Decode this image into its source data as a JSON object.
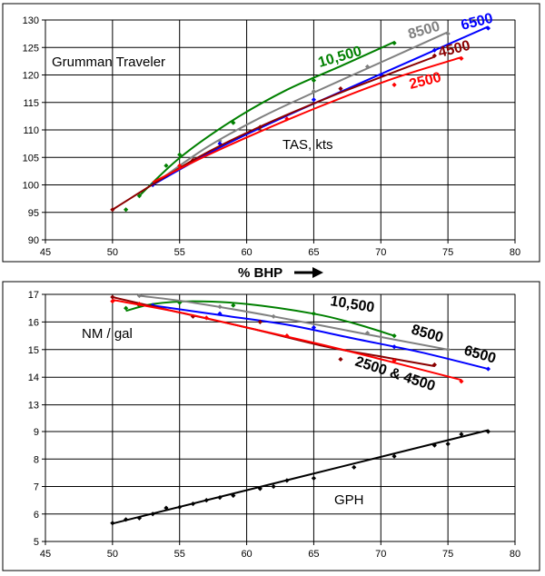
{
  "x_axis_title": "% BHP",
  "chart_data": [
    {
      "type": "line",
      "panel": "top",
      "annotations": [
        "Grumman Traveler",
        "TAS, kts"
      ],
      "xlim": [
        45,
        80
      ],
      "ylim": [
        90,
        130
      ],
      "xticks": [
        45,
        50,
        55,
        60,
        65,
        70,
        75,
        80
      ],
      "yticks": [
        90,
        95,
        100,
        105,
        110,
        115,
        120,
        125,
        130
      ],
      "grid": true,
      "series": [
        {
          "name": "10,500",
          "color": "#008000",
          "label_angle": -16,
          "points": [
            [
              51,
              95.5
            ],
            [
              52,
              98
            ],
            [
              54,
              103.5
            ],
            [
              55,
              105.5
            ],
            [
              59,
              111.3
            ],
            [
              65,
              119
            ],
            [
              71,
              125.8
            ]
          ],
          "fit": [
            [
              52,
              98
            ],
            [
              55,
              104.9
            ],
            [
              59,
              111.8
            ],
            [
              63,
              117.3
            ],
            [
              67,
              121.6
            ],
            [
              71,
              126
            ]
          ]
        },
        {
          "name": "8500",
          "color": "#808080",
          "label_angle": -16,
          "points": [
            [
              53,
              100
            ],
            [
              58,
              108
            ],
            [
              65,
              117
            ],
            [
              69,
              121.5
            ],
            [
              75,
              127.5
            ]
          ],
          "fit": [
            [
              53,
              100
            ],
            [
              57,
              106.8
            ],
            [
              61,
              112.2
            ],
            [
              65,
              116.8
            ],
            [
              70,
              122.3
            ],
            [
              75,
              127.8
            ]
          ]
        },
        {
          "name": "6500",
          "color": "#0000ff",
          "label_angle": -14,
          "points": [
            [
              53,
              100
            ],
            [
              58,
              107.5
            ],
            [
              65,
              115.5
            ],
            [
              70,
              120
            ],
            [
              74,
              124.5
            ],
            [
              78,
              128.5
            ]
          ],
          "fit": [
            [
              53,
              100
            ],
            [
              58,
              106.8
            ],
            [
              63,
              112.6
            ],
            [
              68,
              118
            ],
            [
              73,
              123.4
            ],
            [
              78,
              128.8
            ]
          ]
        },
        {
          "name": "4500",
          "color": "#8b0000",
          "label_angle": -14,
          "points": [
            [
              50,
              95.5
            ],
            [
              56,
              104.5
            ],
            [
              61,
              110.5
            ],
            [
              67,
              117.5
            ],
            [
              74,
              123.5
            ]
          ],
          "fit": [
            [
              50,
              95.5
            ],
            [
              56,
              104.5
            ],
            [
              61,
              110.6
            ],
            [
              66,
              115.8
            ],
            [
              70,
              119.6
            ],
            [
              74,
              123.3
            ]
          ]
        },
        {
          "name": "2500",
          "color": "#ff0000",
          "label_angle": -14,
          "points": [
            [
              55,
              103.5
            ],
            [
              63,
              112
            ],
            [
              71,
              118.2
            ],
            [
              76,
              123
            ]
          ],
          "fit": [
            [
              53,
              100.5
            ],
            [
              57,
              105.3
            ],
            [
              61,
              109.7
            ],
            [
              66,
              114.8
            ],
            [
              71,
              119.4
            ],
            [
              76,
              123.2
            ]
          ]
        }
      ]
    },
    {
      "type": "line",
      "panel": "bottom",
      "annotations": [
        "NM / gal",
        "GPH"
      ],
      "xlim": [
        45,
        80
      ],
      "ylim": [
        5,
        17
      ],
      "xticks": [
        45,
        50,
        55,
        60,
        65,
        70,
        75,
        80
      ],
      "yticks": [
        5,
        6,
        7,
        8,
        9,
        13,
        14,
        15,
        16,
        17
      ],
      "grid": true,
      "series": [
        {
          "name": "10,500",
          "color": "#008000",
          "label_angle": 9,
          "points": [
            [
              51,
              16.5
            ],
            [
              52,
              16.6
            ],
            [
              55,
              16.7
            ],
            [
              59,
              16.6
            ],
            [
              65,
              16.3
            ],
            [
              71,
              15.5
            ]
          ],
          "fit": [
            [
              51,
              16.4
            ],
            [
              53,
              16.65
            ],
            [
              56,
              16.75
            ],
            [
              60,
              16.65
            ],
            [
              65,
              16.3
            ],
            [
              68,
              15.95
            ],
            [
              71,
              15.5
            ]
          ]
        },
        {
          "name": "8500",
          "color": "#808080",
          "label_angle": 16,
          "points": [
            [
              52,
              16.95
            ],
            [
              58,
              16.55
            ],
            [
              62,
              16.2
            ],
            [
              69,
              15.6
            ],
            [
              75,
              15
            ]
          ],
          "fit": [
            [
              52,
              16.95
            ],
            [
              56,
              16.7
            ],
            [
              62,
              16.2
            ],
            [
              69,
              15.55
            ],
            [
              75,
              15
            ]
          ]
        },
        {
          "name": "6500",
          "color": "#0000ff",
          "label_angle": 16,
          "points": [
            [
              53,
              16.6
            ],
            [
              58,
              16.3
            ],
            [
              65,
              15.8
            ],
            [
              71,
              15.1
            ],
            [
              78,
              14.3
            ]
          ],
          "fit": [
            [
              53,
              16.6
            ],
            [
              58,
              16.25
            ],
            [
              63,
              15.9
            ],
            [
              68,
              15.4
            ],
            [
              73,
              14.9
            ],
            [
              78,
              14.3
            ]
          ]
        },
        {
          "name": "2500 & 4500 (4500)",
          "color": "#8b0000",
          "points": [
            [
              50,
              16.9
            ],
            [
              56,
              16.2
            ],
            [
              61,
              16
            ],
            [
              67,
              14.65
            ],
            [
              74,
              14.45
            ]
          ],
          "fit": [
            [
              50,
              16.9
            ],
            [
              54,
              16.45
            ],
            [
              60,
              15.8
            ],
            [
              66,
              15.1
            ],
            [
              70,
              14.75
            ],
            [
              74,
              14.4
            ]
          ]
        },
        {
          "name": "2500 & 4500 (2500)",
          "color": "#ff0000",
          "label_angle": 18,
          "points": [
            [
              50,
              16.75
            ],
            [
              52,
              16.65
            ],
            [
              57,
              16.15
            ],
            [
              63,
              15.5
            ],
            [
              71,
              14.6
            ],
            [
              76,
              13.85
            ]
          ],
          "fit": [
            [
              50,
              16.8
            ],
            [
              55,
              16.35
            ],
            [
              60,
              15.8
            ],
            [
              65,
              15.25
            ],
            [
              70,
              14.65
            ],
            [
              76,
              13.9
            ]
          ]
        },
        {
          "name": "GPH",
          "color": "#000000",
          "points": [
            [
              50,
              5.67
            ],
            [
              51,
              5.8
            ],
            [
              52,
              5.85
            ],
            [
              53,
              6
            ],
            [
              54,
              6.22
            ],
            [
              55,
              6.25
            ],
            [
              56,
              6.37
            ],
            [
              57,
              6.5
            ],
            [
              58,
              6.6
            ],
            [
              59,
              6.67
            ],
            [
              61,
              6.92
            ],
            [
              62,
              7
            ],
            [
              63,
              7.22
            ],
            [
              65,
              7.3
            ],
            [
              68,
              7.7
            ],
            [
              71,
              8.1
            ],
            [
              74,
              8.5
            ],
            [
              75,
              8.55
            ],
            [
              76,
              8.9
            ],
            [
              78,
              9
            ]
          ],
          "fit": [
            [
              50,
              5.65
            ],
            [
              78,
              9.05
            ]
          ]
        }
      ]
    }
  ],
  "labels": {
    "top_title": "Grumman Traveler",
    "top_quantity": "TAS, kts",
    "top_10500": "10,500",
    "top_8500": "8500",
    "top_6500": "6500",
    "top_4500": "4500",
    "top_2500": "2500",
    "bot_quantity": "NM / gal",
    "bot_10500": "10,500",
    "bot_8500": "8500",
    "bot_6500": "6500",
    "bot_2500_4500": "2500 & 4500",
    "bot_gph": "GPH"
  }
}
